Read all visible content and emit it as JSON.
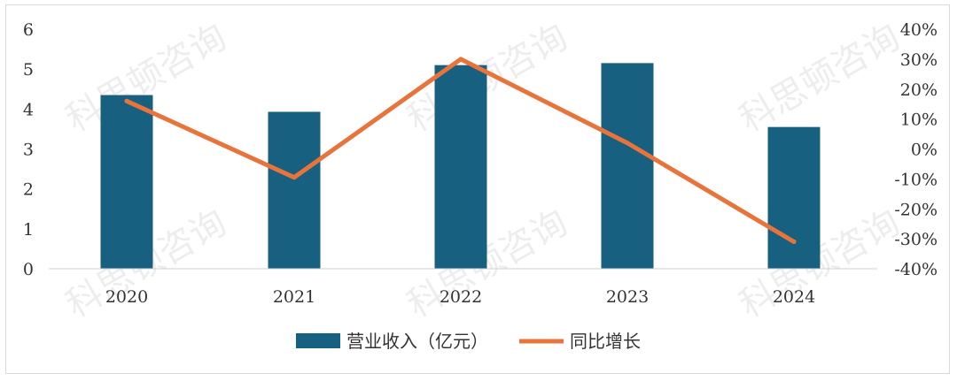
{
  "chart_data": {
    "type": "bar+line",
    "categories": [
      "2020",
      "2021",
      "2022",
      "2023",
      "2024"
    ],
    "series": [
      {
        "name": "营业收入（亿元）",
        "type": "bar",
        "axis": "left",
        "color": "#17607f",
        "values": [
          4.35,
          3.93,
          5.1,
          5.15,
          3.55
        ]
      },
      {
        "name": "同比增长",
        "type": "line",
        "axis": "right",
        "color": "#e8743b",
        "values": [
          16,
          -9.5,
          30,
          2,
          -31
        ]
      }
    ],
    "y_left": {
      "min": 0,
      "max": 6,
      "ticks": [
        "0",
        "1",
        "2",
        "3",
        "4",
        "5",
        "6"
      ]
    },
    "y_right": {
      "min": -40,
      "max": 40,
      "ticks": [
        "-40%",
        "-30%",
        "-20%",
        "-10%",
        "0%",
        "10%",
        "20%",
        "30%",
        "40%"
      ]
    },
    "grid": false,
    "legend_position": "bottom"
  },
  "watermark": "科思顿咨询"
}
